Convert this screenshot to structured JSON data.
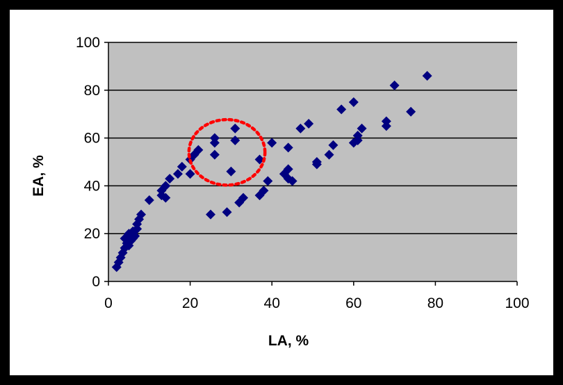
{
  "chart_data": {
    "type": "scatter",
    "title": "",
    "xlabel": "LA, %",
    "ylabel": "EA, %",
    "xlim": [
      0,
      100
    ],
    "ylim": [
      0,
      100
    ],
    "x_ticks": [
      "0",
      "20",
      "40",
      "60",
      "80",
      "100"
    ],
    "y_ticks": [
      "0",
      "20",
      "40",
      "60",
      "80",
      "100"
    ],
    "grid": "horizontal",
    "legend": "none",
    "plot_background": "#c0c0c0",
    "marker": "diamond",
    "marker_color": "#000080",
    "annotation": {
      "shape": "dotted-circle",
      "color": "#ff0000",
      "center": [
        29,
        54
      ],
      "radius_x_units": 9.3,
      "radius_y_units": 13.7
    },
    "series": [
      {
        "values": [
          [
            2,
            6
          ],
          [
            2.5,
            8
          ],
          [
            3,
            10
          ],
          [
            3.5,
            12
          ],
          [
            4,
            14
          ],
          [
            4.5,
            16
          ],
          [
            4,
            18
          ],
          [
            5,
            15
          ],
          [
            5,
            20
          ],
          [
            5.5,
            17
          ],
          [
            6,
            18
          ],
          [
            6,
            21
          ],
          [
            6.5,
            19
          ],
          [
            7,
            22
          ],
          [
            7,
            24
          ],
          [
            7.5,
            26
          ],
          [
            8,
            28
          ],
          [
            10,
            34
          ],
          [
            13,
            36
          ],
          [
            13,
            38
          ],
          [
            14,
            35
          ],
          [
            14,
            40
          ],
          [
            15,
            43
          ],
          [
            17,
            45
          ],
          [
            18,
            48
          ],
          [
            20,
            45
          ],
          [
            20,
            51
          ],
          [
            21,
            53
          ],
          [
            22,
            55
          ],
          [
            25,
            28
          ],
          [
            26,
            53
          ],
          [
            26,
            58
          ],
          [
            26,
            60
          ],
          [
            29,
            29
          ],
          [
            30,
            46
          ],
          [
            31,
            59
          ],
          [
            31,
            64
          ],
          [
            32,
            33
          ],
          [
            33,
            35
          ],
          [
            37,
            36
          ],
          [
            37,
            51
          ],
          [
            38,
            38
          ],
          [
            39,
            42
          ],
          [
            40,
            58
          ],
          [
            43,
            45
          ],
          [
            44,
            43
          ],
          [
            44,
            47
          ],
          [
            44,
            56
          ],
          [
            45,
            42
          ],
          [
            47,
            64
          ],
          [
            49,
            66
          ],
          [
            51,
            49
          ],
          [
            51,
            50
          ],
          [
            54,
            53
          ],
          [
            55,
            57
          ],
          [
            57,
            72
          ],
          [
            60,
            58
          ],
          [
            60,
            75
          ],
          [
            61,
            59
          ],
          [
            61,
            61
          ],
          [
            62,
            64
          ],
          [
            68,
            65
          ],
          [
            68,
            67
          ],
          [
            70,
            82
          ],
          [
            74,
            71
          ],
          [
            78,
            86
          ]
        ]
      }
    ]
  }
}
